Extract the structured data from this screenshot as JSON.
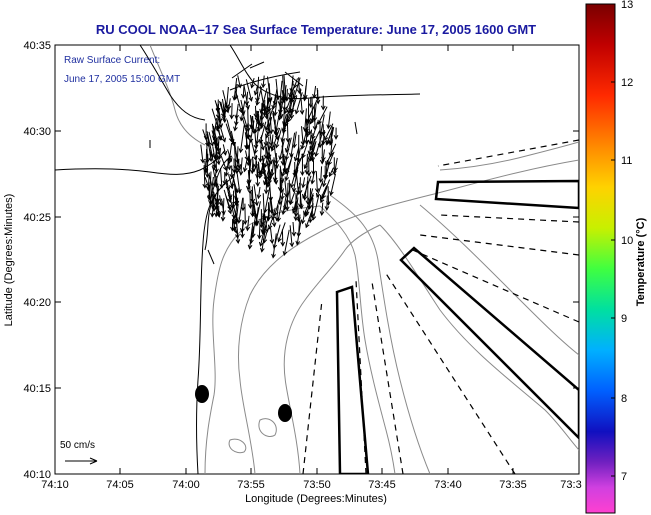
{
  "title": "RU COOL  NOAA–17  Sea Surface Temperature:  June 17, 2005 1600 GMT",
  "annotation": {
    "line1": "Raw Surface Current:",
    "line2": "June 17, 2005 15:00 GMT"
  },
  "scale_label": "50 cm/s",
  "axes": {
    "xlabel": "Longitude (Degrees:Minutes)",
    "ylabel": "Latitude (Degrees:Minutes)",
    "xticks": [
      "74:10",
      "74:05",
      "74:00",
      "73:55",
      "73:50",
      "73:45",
      "73:40",
      "73:35",
      "73:3"
    ],
    "yticks": [
      "40:35",
      "40:30",
      "40:25",
      "40:20",
      "40:15",
      "40:10"
    ]
  },
  "colorbar": {
    "label": "Temperature (°C)",
    "ticks": [
      "13",
      "12",
      "11",
      "10",
      "9",
      "8",
      "7"
    ]
  },
  "colors": {
    "title": "#1a1aa0",
    "annotation": "#2030a0",
    "land_line": "#000000",
    "bathymetry": "#8a8a8a",
    "vector": "#000000"
  }
}
